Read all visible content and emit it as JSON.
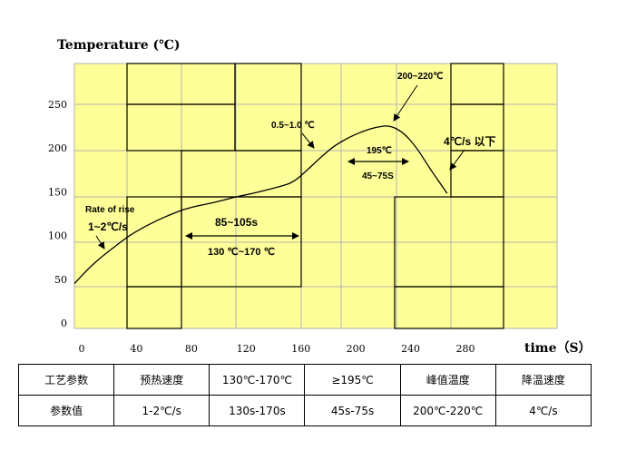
{
  "chart_data": {
    "type": "line",
    "ylabel": "Temperature (℃)",
    "xlabel": "time（S）",
    "y_ticks": [
      "250",
      "200",
      "150",
      "100",
      "50",
      "0"
    ],
    "x_ticks": [
      "0",
      "40",
      "80",
      "120",
      "160",
      "200",
      "240",
      "280"
    ],
    "ylim": [
      0,
      250
    ],
    "xlim": [
      0,
      300
    ],
    "grid": true,
    "background": "#FFFF99",
    "line_color": "#000000",
    "series": [
      {
        "x": [
          0,
          10,
          20,
          30,
          40,
          50,
          60,
          70,
          80,
          90,
          100,
          110,
          120,
          130,
          140,
          150,
          160,
          170,
          180,
          190,
          200,
          210,
          220,
          230,
          240,
          250,
          260,
          272
        ],
        "y": [
          45,
          62,
          76,
          88,
          100,
          109,
          117,
          124,
          130,
          134,
          137,
          141,
          145,
          148,
          152,
          156,
          161,
          175,
          190,
          203,
          212,
          219,
          224,
          226,
          218,
          200,
          175,
          148
        ]
      }
    ],
    "annotations": {
      "rise_line1": "Rate of rise",
      "rise_line2": "1~2℃/s",
      "preheat_time": "85~105s",
      "preheat_temp": "130 ℃~170 ℃",
      "ramp": "0.5~1.0 ℃",
      "peak": "200~220℃",
      "above_temp": "195℃",
      "above_time": "45~75S",
      "cool": "4℃/s 以下"
    }
  },
  "table": {
    "rows": [
      [
        "工艺参数",
        "预热速度",
        "130℃-170℃",
        "≥195℃",
        "峰值温度",
        "降温速度"
      ],
      [
        "参数值",
        "1-2℃/s",
        "130s-170s",
        "45s-75s",
        "200℃-220℃",
        "4℃/s"
      ]
    ]
  }
}
